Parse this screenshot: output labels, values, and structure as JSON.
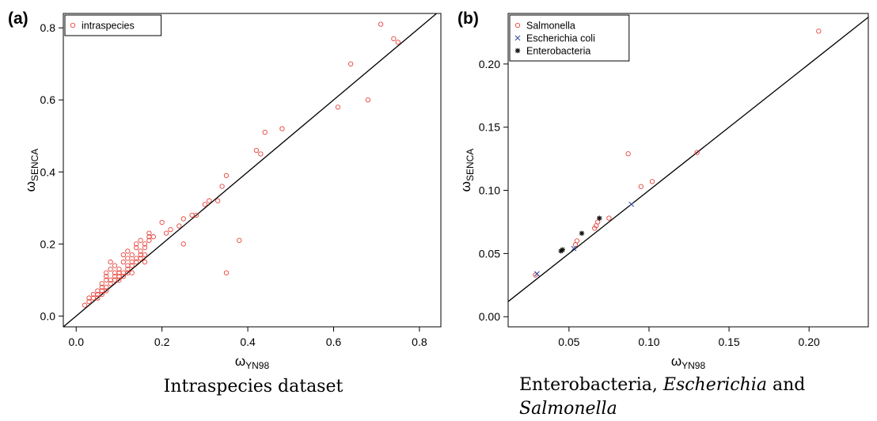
{
  "chart_data": [
    {
      "type": "scatter",
      "panel_label": "(a)",
      "xlabel_symbol": "ω",
      "xlabel_sub": "YN98",
      "ylabel_symbol": "ω",
      "ylabel_sub": "SENCA",
      "xlim": [
        -0.03,
        0.85
      ],
      "ylim": [
        -0.03,
        0.84
      ],
      "xticks": [
        0.0,
        0.2,
        0.4,
        0.6,
        0.8
      ],
      "xtick_labels": [
        "0.0",
        "0.2",
        "0.4",
        "0.6",
        "0.8"
      ],
      "yticks": [
        0.0,
        0.2,
        0.4,
        0.6,
        0.8
      ],
      "ytick_labels": [
        "0.0",
        "0.2",
        "0.4",
        "0.6",
        "0.8"
      ],
      "grid": false,
      "legend_position": "top-left",
      "reference_line": "y = x",
      "caption": "Intraspecies dataset",
      "series": [
        {
          "name": "intraspecies",
          "marker": "open-circle",
          "color": "#e8453c",
          "points": [
            [
              0.02,
              0.03
            ],
            [
              0.03,
              0.04
            ],
            [
              0.03,
              0.05
            ],
            [
              0.04,
              0.05
            ],
            [
              0.04,
              0.06
            ],
            [
              0.05,
              0.05
            ],
            [
              0.05,
              0.06
            ],
            [
              0.05,
              0.07
            ],
            [
              0.06,
              0.06
            ],
            [
              0.06,
              0.07
            ],
            [
              0.06,
              0.08
            ],
            [
              0.06,
              0.09
            ],
            [
              0.07,
              0.07
            ],
            [
              0.07,
              0.08
            ],
            [
              0.07,
              0.1
            ],
            [
              0.07,
              0.11
            ],
            [
              0.07,
              0.12
            ],
            [
              0.08,
              0.09
            ],
            [
              0.08,
              0.1
            ],
            [
              0.08,
              0.13
            ],
            [
              0.08,
              0.15
            ],
            [
              0.09,
              0.1
            ],
            [
              0.09,
              0.11
            ],
            [
              0.09,
              0.12
            ],
            [
              0.09,
              0.14
            ],
            [
              0.1,
              0.1
            ],
            [
              0.1,
              0.11
            ],
            [
              0.1,
              0.12
            ],
            [
              0.1,
              0.13
            ],
            [
              0.11,
              0.11
            ],
            [
              0.11,
              0.12
            ],
            [
              0.11,
              0.15
            ],
            [
              0.11,
              0.17
            ],
            [
              0.12,
              0.12
            ],
            [
              0.12,
              0.13
            ],
            [
              0.12,
              0.14
            ],
            [
              0.12,
              0.16
            ],
            [
              0.12,
              0.18
            ],
            [
              0.13,
              0.14
            ],
            [
              0.13,
              0.15
            ],
            [
              0.13,
              0.17
            ],
            [
              0.13,
              0.12
            ],
            [
              0.14,
              0.15
            ],
            [
              0.14,
              0.16
            ],
            [
              0.14,
              0.19
            ],
            [
              0.14,
              0.2
            ],
            [
              0.15,
              0.16
            ],
            [
              0.15,
              0.17
            ],
            [
              0.15,
              0.18
            ],
            [
              0.15,
              0.21
            ],
            [
              0.16,
              0.17
            ],
            [
              0.16,
              0.19
            ],
            [
              0.16,
              0.2
            ],
            [
              0.16,
              0.15
            ],
            [
              0.17,
              0.21
            ],
            [
              0.17,
              0.22
            ],
            [
              0.17,
              0.23
            ],
            [
              0.18,
              0.22
            ],
            [
              0.2,
              0.26
            ],
            [
              0.21,
              0.23
            ],
            [
              0.22,
              0.24
            ],
            [
              0.24,
              0.25
            ],
            [
              0.25,
              0.2
            ],
            [
              0.25,
              0.27
            ],
            [
              0.27,
              0.28
            ],
            [
              0.28,
              0.28
            ],
            [
              0.3,
              0.31
            ],
            [
              0.31,
              0.32
            ],
            [
              0.33,
              0.32
            ],
            [
              0.34,
              0.36
            ],
            [
              0.35,
              0.39
            ],
            [
              0.35,
              0.12
            ],
            [
              0.38,
              0.21
            ],
            [
              0.42,
              0.46
            ],
            [
              0.43,
              0.45
            ],
            [
              0.44,
              0.51
            ],
            [
              0.48,
              0.52
            ],
            [
              0.61,
              0.58
            ],
            [
              0.64,
              0.7
            ],
            [
              0.68,
              0.6
            ],
            [
              0.71,
              0.81
            ],
            [
              0.74,
              0.77
            ],
            [
              0.75,
              0.76
            ]
          ]
        }
      ]
    },
    {
      "type": "scatter",
      "panel_label": "(b)",
      "xlabel_symbol": "ω",
      "xlabel_sub": "YN98",
      "ylabel_symbol": "ω",
      "ylabel_sub": "SENCA",
      "xlim": [
        0.012,
        0.237
      ],
      "ylim": [
        -0.008,
        0.24
      ],
      "xticks": [
        0.05,
        0.1,
        0.15,
        0.2
      ],
      "xtick_labels": [
        "0.05",
        "0.10",
        "0.15",
        "0.20"
      ],
      "yticks": [
        0.0,
        0.05,
        0.1,
        0.15,
        0.2
      ],
      "ytick_labels": [
        "0.00",
        "0.05",
        "0.10",
        "0.15",
        "0.20"
      ],
      "grid": false,
      "legend_position": "top-left",
      "reference_line": "y = x",
      "caption_parts": [
        "Enterobacteria, ",
        "Escherichia",
        " and",
        "Salmonella"
      ],
      "series": [
        {
          "name": "Salmonella",
          "marker": "open-circle",
          "color": "#e8453c",
          "points": [
            [
              0.029,
              0.033
            ],
            [
              0.054,
              0.057
            ],
            [
              0.055,
              0.06
            ],
            [
              0.066,
              0.07
            ],
            [
              0.067,
              0.072
            ],
            [
              0.068,
              0.075
            ],
            [
              0.075,
              0.078
            ],
            [
              0.087,
              0.129
            ],
            [
              0.095,
              0.103
            ],
            [
              0.102,
              0.107
            ],
            [
              0.13,
              0.13
            ],
            [
              0.206,
              0.226
            ]
          ]
        },
        {
          "name": "Escherichia coli",
          "marker": "x",
          "color": "#3a4fa0",
          "points": [
            [
              0.03,
              0.034
            ],
            [
              0.053,
              0.054
            ],
            [
              0.089,
              0.089
            ]
          ]
        },
        {
          "name": "Enterobacteria",
          "marker": "asterisk",
          "color": "#111111",
          "points": [
            [
              0.045,
              0.052
            ],
            [
              0.046,
              0.053
            ],
            [
              0.058,
              0.066
            ],
            [
              0.069,
              0.078
            ]
          ]
        }
      ]
    }
  ]
}
